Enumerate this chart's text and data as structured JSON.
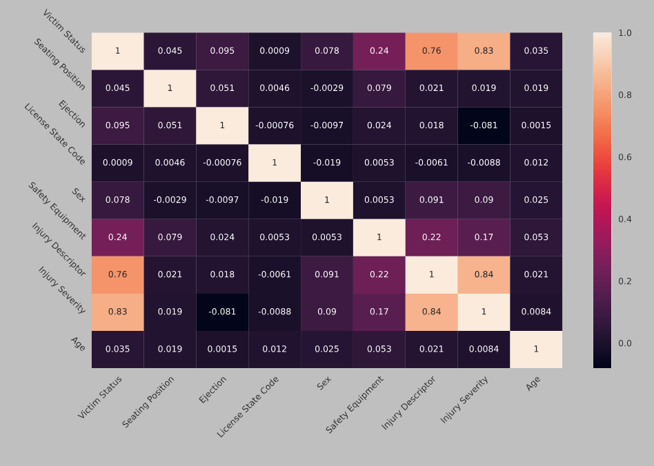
{
  "chart_data": {
    "type": "heatmap",
    "categories": [
      "Victim Status",
      "Seating Position",
      "Ejection",
      "License State Code",
      "Sex",
      "Safety Equipment",
      "Injury Descriptor",
      "Injury Severity",
      "Age"
    ],
    "y_categories": [
      "Victim Status",
      "Seating Position",
      "Ejection",
      "License State Code",
      "Sex",
      "Safety Equipment",
      "Injury Descriptor",
      "Injury Severity",
      "Age"
    ],
    "cells": [
      [
        1,
        0.045,
        0.095,
        0.0009,
        0.078,
        0.24,
        0.76,
        0.83,
        0.035
      ],
      [
        0.045,
        1,
        0.051,
        0.0046,
        -0.0029,
        0.079,
        0.021,
        0.019,
        0.019
      ],
      [
        0.095,
        0.051,
        1,
        -0.00076,
        -0.0097,
        0.024,
        0.018,
        -0.081,
        0.0015
      ],
      [
        0.0009,
        0.0046,
        -0.00076,
        1,
        -0.019,
        0.0053,
        -0.0061,
        -0.0088,
        0.012
      ],
      [
        0.078,
        -0.0029,
        -0.0097,
        -0.019,
        1,
        0.0053,
        0.091,
        0.09,
        0.025
      ],
      [
        0.24,
        0.079,
        0.024,
        0.0053,
        0.0053,
        1,
        0.22,
        0.17,
        0.053
      ],
      [
        0.76,
        0.021,
        0.018,
        -0.0061,
        0.091,
        0.22,
        1,
        0.84,
        0.021
      ],
      [
        0.83,
        0.019,
        -0.081,
        -0.0088,
        0.09,
        0.17,
        0.84,
        1,
        0.0084
      ],
      [
        0.035,
        0.019,
        0.0015,
        0.012,
        0.025,
        0.053,
        0.021,
        0.0084,
        1
      ]
    ],
    "data_labels": true,
    "clim": [
      -0.081,
      1
    ],
    "cticks": [
      {
        "value": 0.0,
        "label": "0.0"
      },
      {
        "value": 0.2,
        "label": "0.2"
      },
      {
        "value": 0.4,
        "label": "0.4"
      },
      {
        "value": 0.6,
        "label": "0.6"
      },
      {
        "value": 0.8,
        "label": "0.8"
      },
      {
        "value": 1.0,
        "label": "1.0"
      }
    ]
  }
}
